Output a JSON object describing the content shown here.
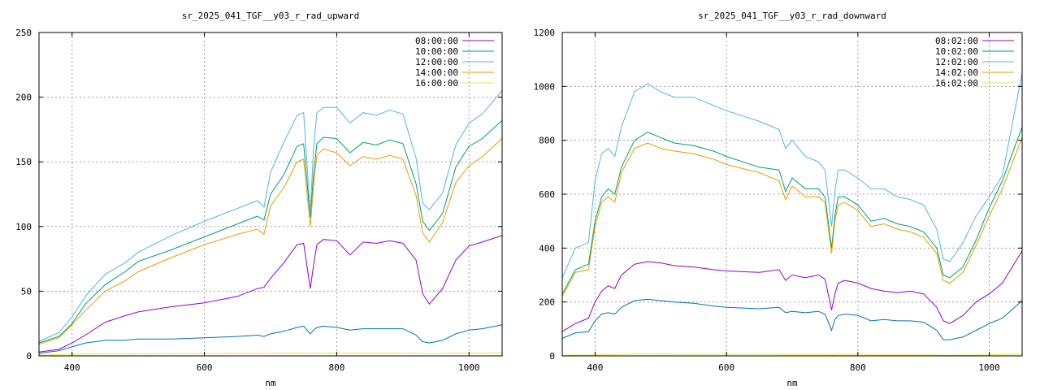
{
  "chart_data": [
    {
      "type": "line",
      "title": "sr_2025_041_TGF__y03_r_rad_upward",
      "xlabel": "nm",
      "ylabel": "",
      "xlim": [
        350,
        1050
      ],
      "ylim": [
        0,
        250
      ],
      "xticks": [
        400,
        600,
        800,
        1000
      ],
      "yticks": [
        0,
        50,
        100,
        150,
        200,
        250
      ],
      "grid": true,
      "legend_position": "top-right",
      "series": [
        {
          "name": "08:00:00",
          "color": "#9400d3",
          "x": [
            350,
            380,
            400,
            420,
            450,
            480,
            500,
            550,
            600,
            650,
            680,
            690,
            700,
            720,
            740,
            750,
            760,
            765,
            770,
            780,
            800,
            820,
            840,
            860,
            880,
            900,
            920,
            930,
            940,
            960,
            980,
            1000,
            1020,
            1050
          ],
          "y": [
            3,
            5,
            10,
            16,
            26,
            31,
            34,
            38,
            41,
            46,
            52,
            53,
            60,
            72,
            86,
            87,
            52,
            70,
            86,
            90,
            89,
            78,
            88,
            87,
            89,
            87,
            74,
            48,
            40,
            52,
            74,
            85,
            88,
            93
          ]
        },
        {
          "name": "10:00:00",
          "color": "#009e73",
          "x": [
            350,
            380,
            400,
            420,
            450,
            480,
            500,
            550,
            600,
            650,
            680,
            690,
            700,
            720,
            740,
            750,
            760,
            765,
            770,
            780,
            800,
            820,
            840,
            860,
            880,
            900,
            920,
            930,
            940,
            960,
            980,
            1000,
            1020,
            1050
          ],
          "y": [
            10,
            15,
            25,
            40,
            55,
            65,
            73,
            82,
            92,
            102,
            108,
            105,
            125,
            140,
            162,
            164,
            107,
            140,
            164,
            169,
            168,
            157,
            165,
            163,
            167,
            164,
            133,
            104,
            97,
            110,
            146,
            162,
            168,
            182
          ]
        },
        {
          "name": "12:00:00",
          "color": "#56b4e9",
          "x": [
            350,
            380,
            400,
            420,
            450,
            480,
            500,
            550,
            600,
            650,
            680,
            690,
            700,
            720,
            740,
            750,
            760,
            765,
            770,
            780,
            800,
            820,
            840,
            860,
            880,
            900,
            920,
            930,
            940,
            960,
            980,
            1000,
            1020,
            1050
          ],
          "y": [
            11,
            18,
            30,
            46,
            63,
            72,
            80,
            93,
            104,
            114,
            120,
            115,
            142,
            165,
            186,
            188,
            110,
            160,
            188,
            192,
            192,
            180,
            188,
            186,
            190,
            187,
            153,
            118,
            113,
            126,
            163,
            180,
            187,
            205
          ]
        },
        {
          "name": "14:00:00",
          "color": "#e69f00",
          "x": [
            350,
            380,
            400,
            420,
            450,
            480,
            500,
            550,
            600,
            650,
            680,
            690,
            700,
            720,
            740,
            750,
            760,
            765,
            770,
            780,
            800,
            820,
            840,
            860,
            880,
            900,
            920,
            930,
            940,
            960,
            980,
            1000,
            1020,
            1050
          ],
          "y": [
            9,
            14,
            24,
            35,
            50,
            58,
            65,
            76,
            86,
            94,
            98,
            94,
            116,
            130,
            150,
            152,
            100,
            131,
            155,
            160,
            157,
            147,
            154,
            152,
            155,
            152,
            124,
            95,
            88,
            103,
            134,
            147,
            154,
            168
          ]
        },
        {
          "name": "16:00:00",
          "color": "#f0e442",
          "x": [
            350,
            380,
            400,
            420,
            450,
            480,
            500,
            550,
            600,
            650,
            680,
            690,
            700,
            720,
            740,
            750,
            760,
            765,
            770,
            780,
            800,
            820,
            840,
            860,
            880,
            900,
            920,
            930,
            940,
            960,
            980,
            1000,
            1020,
            1050
          ],
          "y": [
            0.8,
            1.0,
            1.2,
            1.4,
            1.5,
            1.5,
            1.6,
            1.7,
            1.8,
            1.9,
            1.9,
            1.9,
            2.0,
            2.1,
            2.2,
            2.2,
            1.8,
            2.1,
            2.2,
            2.2,
            2.2,
            2.1,
            2.2,
            2.2,
            2.2,
            2.2,
            2.0,
            1.8,
            1.8,
            1.9,
            2.1,
            2.2,
            2.2,
            2.3
          ]
        },
        {
          "name": "",
          "color": "#0072b2",
          "x": [
            350,
            380,
            400,
            420,
            450,
            480,
            500,
            550,
            600,
            650,
            680,
            690,
            700,
            720,
            740,
            750,
            760,
            765,
            770,
            780,
            800,
            820,
            840,
            860,
            880,
            900,
            920,
            930,
            940,
            960,
            980,
            1000,
            1020,
            1050
          ],
          "y": [
            2,
            4,
            7,
            10,
            12,
            12,
            13,
            13,
            14,
            15,
            16,
            15,
            17,
            19,
            22,
            23,
            17,
            20,
            22,
            23,
            22,
            20,
            21,
            21,
            21,
            21,
            16,
            11,
            10,
            12,
            17,
            20,
            21,
            24
          ]
        }
      ]
    },
    {
      "type": "line",
      "title": "sr_2025_041_TGF__y03_r_rad_downward",
      "xlabel": "nm",
      "ylabel": "",
      "xlim": [
        350,
        1050
      ],
      "ylim": [
        0,
        1200
      ],
      "xticks": [
        400,
        600,
        800,
        1000
      ],
      "yticks": [
        0,
        200,
        400,
        600,
        800,
        1000,
        1200
      ],
      "grid": true,
      "legend_position": "top-right",
      "series": [
        {
          "name": "08:02:00",
          "color": "#9400d3",
          "x": [
            350,
            370,
            390,
            400,
            410,
            420,
            430,
            440,
            460,
            480,
            500,
            520,
            550,
            580,
            600,
            650,
            680,
            690,
            700,
            720,
            740,
            750,
            760,
            765,
            770,
            780,
            800,
            820,
            840,
            860,
            880,
            900,
            920,
            930,
            940,
            960,
            980,
            1000,
            1020,
            1050
          ],
          "y": [
            90,
            120,
            140,
            200,
            240,
            260,
            250,
            300,
            340,
            350,
            345,
            335,
            330,
            320,
            315,
            310,
            320,
            280,
            300,
            290,
            300,
            285,
            170,
            230,
            270,
            280,
            270,
            250,
            240,
            235,
            240,
            230,
            180,
            130,
            120,
            150,
            200,
            230,
            270,
            390
          ]
        },
        {
          "name": "10:02:00",
          "color": "#009e73",
          "x": [
            350,
            370,
            390,
            400,
            410,
            420,
            430,
            440,
            460,
            480,
            500,
            520,
            550,
            580,
            600,
            650,
            680,
            690,
            700,
            720,
            740,
            750,
            760,
            765,
            770,
            780,
            800,
            820,
            840,
            860,
            880,
            900,
            920,
            930,
            940,
            960,
            980,
            1000,
            1020,
            1050
          ],
          "y": [
            230,
            320,
            340,
            500,
            590,
            620,
            600,
            700,
            800,
            830,
            810,
            790,
            780,
            760,
            740,
            700,
            690,
            610,
            660,
            620,
            620,
            590,
            400,
            520,
            590,
            590,
            560,
            500,
            510,
            490,
            480,
            460,
            400,
            300,
            290,
            330,
            430,
            550,
            650,
            850
          ]
        },
        {
          "name": "12:02:00",
          "color": "#56b4e9",
          "x": [
            350,
            370,
            390,
            400,
            410,
            420,
            430,
            440,
            460,
            480,
            500,
            520,
            550,
            580,
            600,
            650,
            680,
            690,
            700,
            720,
            740,
            750,
            760,
            765,
            770,
            780,
            800,
            820,
            840,
            860,
            880,
            900,
            920,
            930,
            940,
            960,
            980,
            1000,
            1020,
            1050
          ],
          "y": [
            290,
            400,
            420,
            650,
            750,
            770,
            740,
            850,
            980,
            1010,
            980,
            960,
            960,
            930,
            910,
            870,
            840,
            770,
            800,
            740,
            720,
            690,
            480,
            610,
            690,
            690,
            660,
            620,
            620,
            590,
            580,
            560,
            470,
            360,
            350,
            420,
            520,
            590,
            670,
            1050
          ]
        },
        {
          "name": "14:02:00",
          "color": "#e69f00",
          "x": [
            350,
            370,
            390,
            400,
            410,
            420,
            430,
            440,
            460,
            480,
            500,
            520,
            550,
            580,
            600,
            650,
            680,
            690,
            700,
            720,
            740,
            750,
            760,
            765,
            770,
            780,
            800,
            820,
            840,
            860,
            880,
            900,
            920,
            930,
            940,
            960,
            980,
            1000,
            1020,
            1050
          ],
          "y": [
            220,
            310,
            320,
            480,
            570,
            590,
            570,
            680,
            770,
            790,
            770,
            760,
            750,
            730,
            710,
            680,
            650,
            580,
            630,
            590,
            590,
            570,
            380,
            500,
            560,
            570,
            540,
            480,
            490,
            470,
            460,
            440,
            380,
            280,
            270,
            310,
            410,
            520,
            620,
            810
          ]
        },
        {
          "name": "16:02:00",
          "color": "#f0e442",
          "x": [
            350,
            370,
            390,
            400,
            410,
            420,
            430,
            440,
            460,
            480,
            500,
            520,
            550,
            580,
            600,
            650,
            680,
            690,
            700,
            720,
            740,
            750,
            760,
            765,
            770,
            780,
            800,
            820,
            840,
            860,
            880,
            900,
            920,
            930,
            940,
            960,
            980,
            1000,
            1020,
            1050
          ],
          "y": [
            2,
            3,
            3,
            4,
            5,
            5,
            5,
            6,
            6,
            7,
            7,
            6,
            6,
            6,
            6,
            6,
            6,
            5,
            5,
            5,
            5,
            5,
            3,
            4,
            5,
            5,
            5,
            4,
            4,
            4,
            4,
            4,
            3,
            2,
            2,
            3,
            3,
            4,
            5,
            6
          ]
        },
        {
          "name": "",
          "color": "#0072b2",
          "x": [
            350,
            370,
            390,
            400,
            410,
            420,
            430,
            440,
            460,
            480,
            500,
            520,
            550,
            580,
            600,
            650,
            680,
            690,
            700,
            720,
            740,
            750,
            760,
            765,
            770,
            780,
            800,
            820,
            840,
            860,
            880,
            900,
            920,
            930,
            940,
            960,
            980,
            1000,
            1020,
            1050
          ],
          "y": [
            65,
            85,
            90,
            130,
            155,
            160,
            155,
            180,
            205,
            210,
            205,
            200,
            195,
            185,
            180,
            175,
            180,
            160,
            165,
            160,
            165,
            155,
            95,
            135,
            150,
            155,
            150,
            130,
            135,
            130,
            130,
            125,
            95,
            60,
            60,
            70,
            95,
            120,
            140,
            205
          ]
        }
      ]
    }
  ]
}
